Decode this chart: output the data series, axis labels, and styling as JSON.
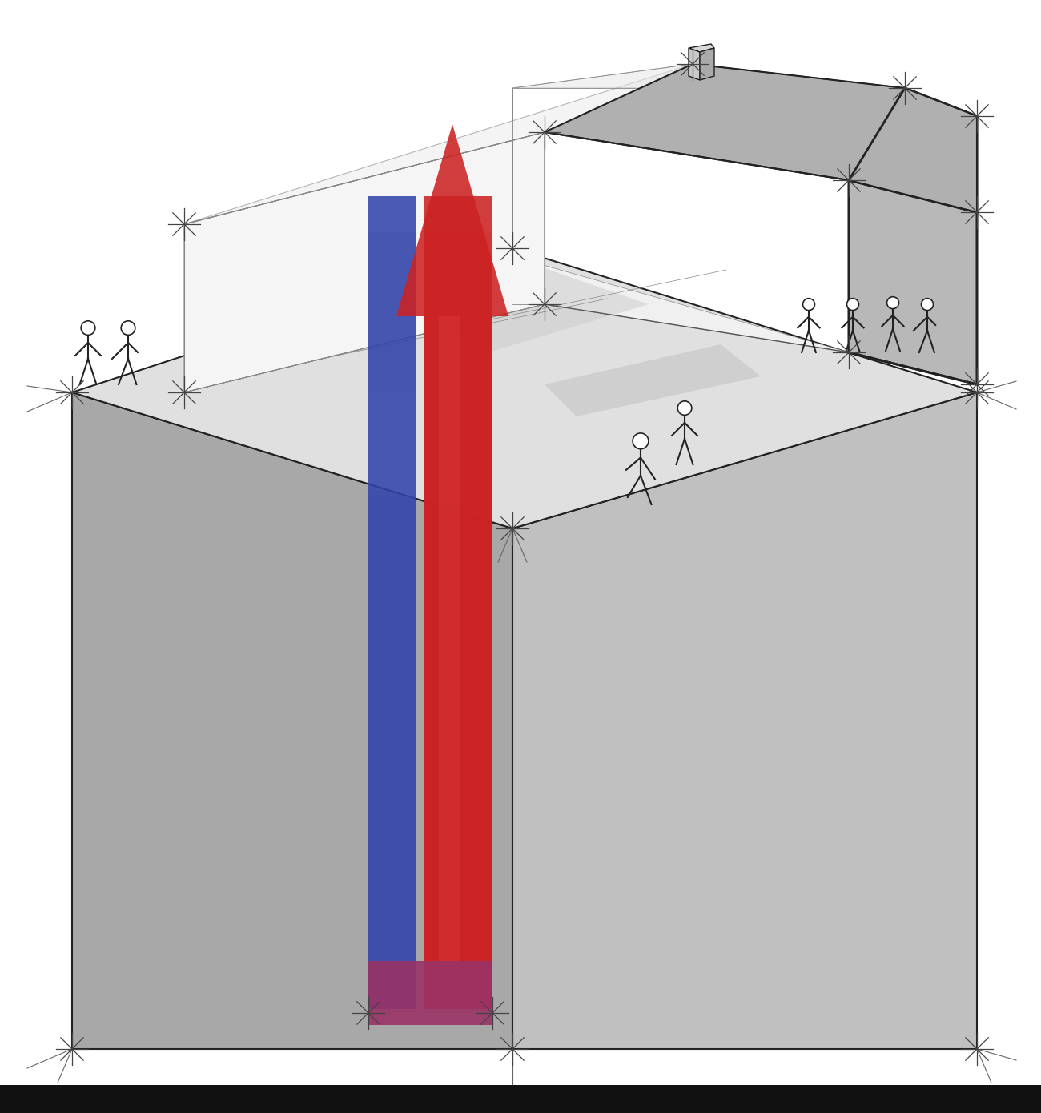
{
  "bg": "#ffffff",
  "gray_light": "#e8e8e8",
  "gray_mid": "#c8c8c8",
  "gray_dark": "#a0a0a0",
  "gray_darker": "#888888",
  "gray_wall": "#b8b8b8",
  "gray_roof": "#b0b0b0",
  "gray_shadow": "#d0d0d0",
  "interior": "#f5f5f5",
  "ground_top": "#e0e0e0",
  "ground_left": "#a8a8a8",
  "ground_right": "#c0c0c0",
  "blue_pipe": "#3344aa",
  "red_pipe": "#cc2222",
  "purple_bottom": "#993366",
  "black": "#111111",
  "line_dark": "#222222",
  "line_mid": "#555555",
  "line_light": "#888888"
}
